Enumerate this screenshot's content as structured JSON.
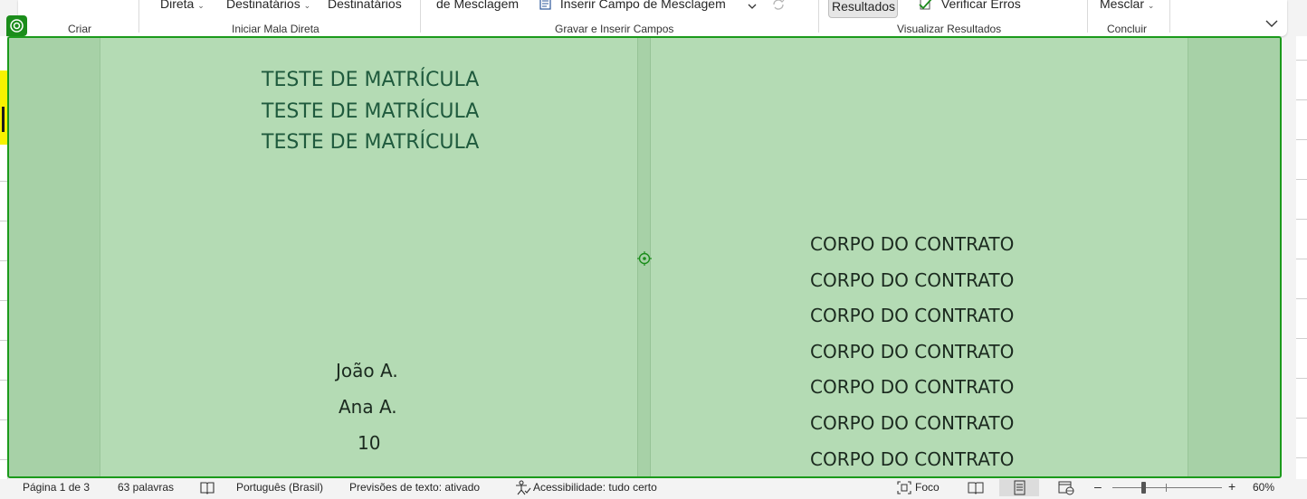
{
  "ribbon": {
    "commands": {
      "direta": "Direta",
      "destinatarios_1": "Destinatários",
      "destinatarios_2": "Destinatários",
      "de_mesclagem": "de Mesclagem",
      "inserir_campo": "Inserir Campo de Mesclagem",
      "resultados": "Resultados",
      "verificar_erros": "Verificar Erros",
      "mesclar": "Mesclar"
    },
    "groups": {
      "criar": "Criar",
      "iniciar": "Iniciar Mala Direta",
      "gravar": "Gravar e Inserir Campos",
      "visualizar": "Visualizar Resultados",
      "concluir": "Concluir"
    }
  },
  "document": {
    "left_page": {
      "title_lines": [
        "TESTE DE MATRÍCULA",
        "TESTE DE MATRÍCULA",
        "TESTE DE MATRÍCULA"
      ],
      "names": [
        "João A.",
        "Ana A."
      ],
      "number": "10"
    },
    "right_page": {
      "body_lines": [
        "CORPO DO CONTRATO",
        "CORPO DO CONTRATO",
        "CORPO DO CONTRATO",
        "CORPO DO CONTRATO",
        "CORPO DO CONTRATO",
        "CORPO DO CONTRATO",
        "CORPO DO CONTRATO"
      ]
    }
  },
  "statusbar": {
    "page": "Página 1 de 3",
    "words": "63 palavras",
    "language": "Português (Brasil)",
    "predictions": "Previsões de texto: ativado",
    "accessibility": "Acessibilidade: tudo certo",
    "focus": "Foco",
    "zoom": "60%"
  },
  "colors": {
    "overlay": "#b4dbb4",
    "frame_border": "#1b9a1b",
    "title_text": "#1f5a3d"
  }
}
